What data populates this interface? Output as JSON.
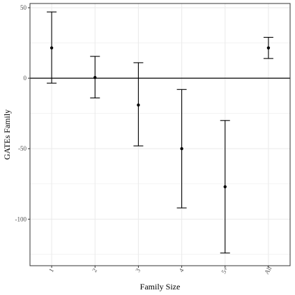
{
  "chart_data": {
    "type": "scatter",
    "subtype": "point-with-error-bars",
    "xlabel": "Family Size",
    "ylabel": "GATEs Family",
    "categories": [
      "1",
      "2",
      "3",
      "4",
      "5+",
      "All"
    ],
    "series": [
      {
        "estimate": [
          21.5,
          0.5,
          -19,
          -50,
          -77,
          21.5
        ],
        "lower": [
          -3.5,
          -14,
          -48,
          -92,
          -124,
          14
        ],
        "upper": [
          47,
          15.5,
          11,
          -8,
          -30,
          29
        ]
      }
    ],
    "ylim": [
      -133,
      53
    ],
    "yticks": [
      50,
      0,
      -50,
      -100
    ],
    "reference_line": 0,
    "grid": true,
    "x_tick_rotation": "rotated",
    "colors": {
      "points": "#000000",
      "grid": "#ebebeb",
      "panel_border": "#333333",
      "background": "#ffffff"
    }
  }
}
